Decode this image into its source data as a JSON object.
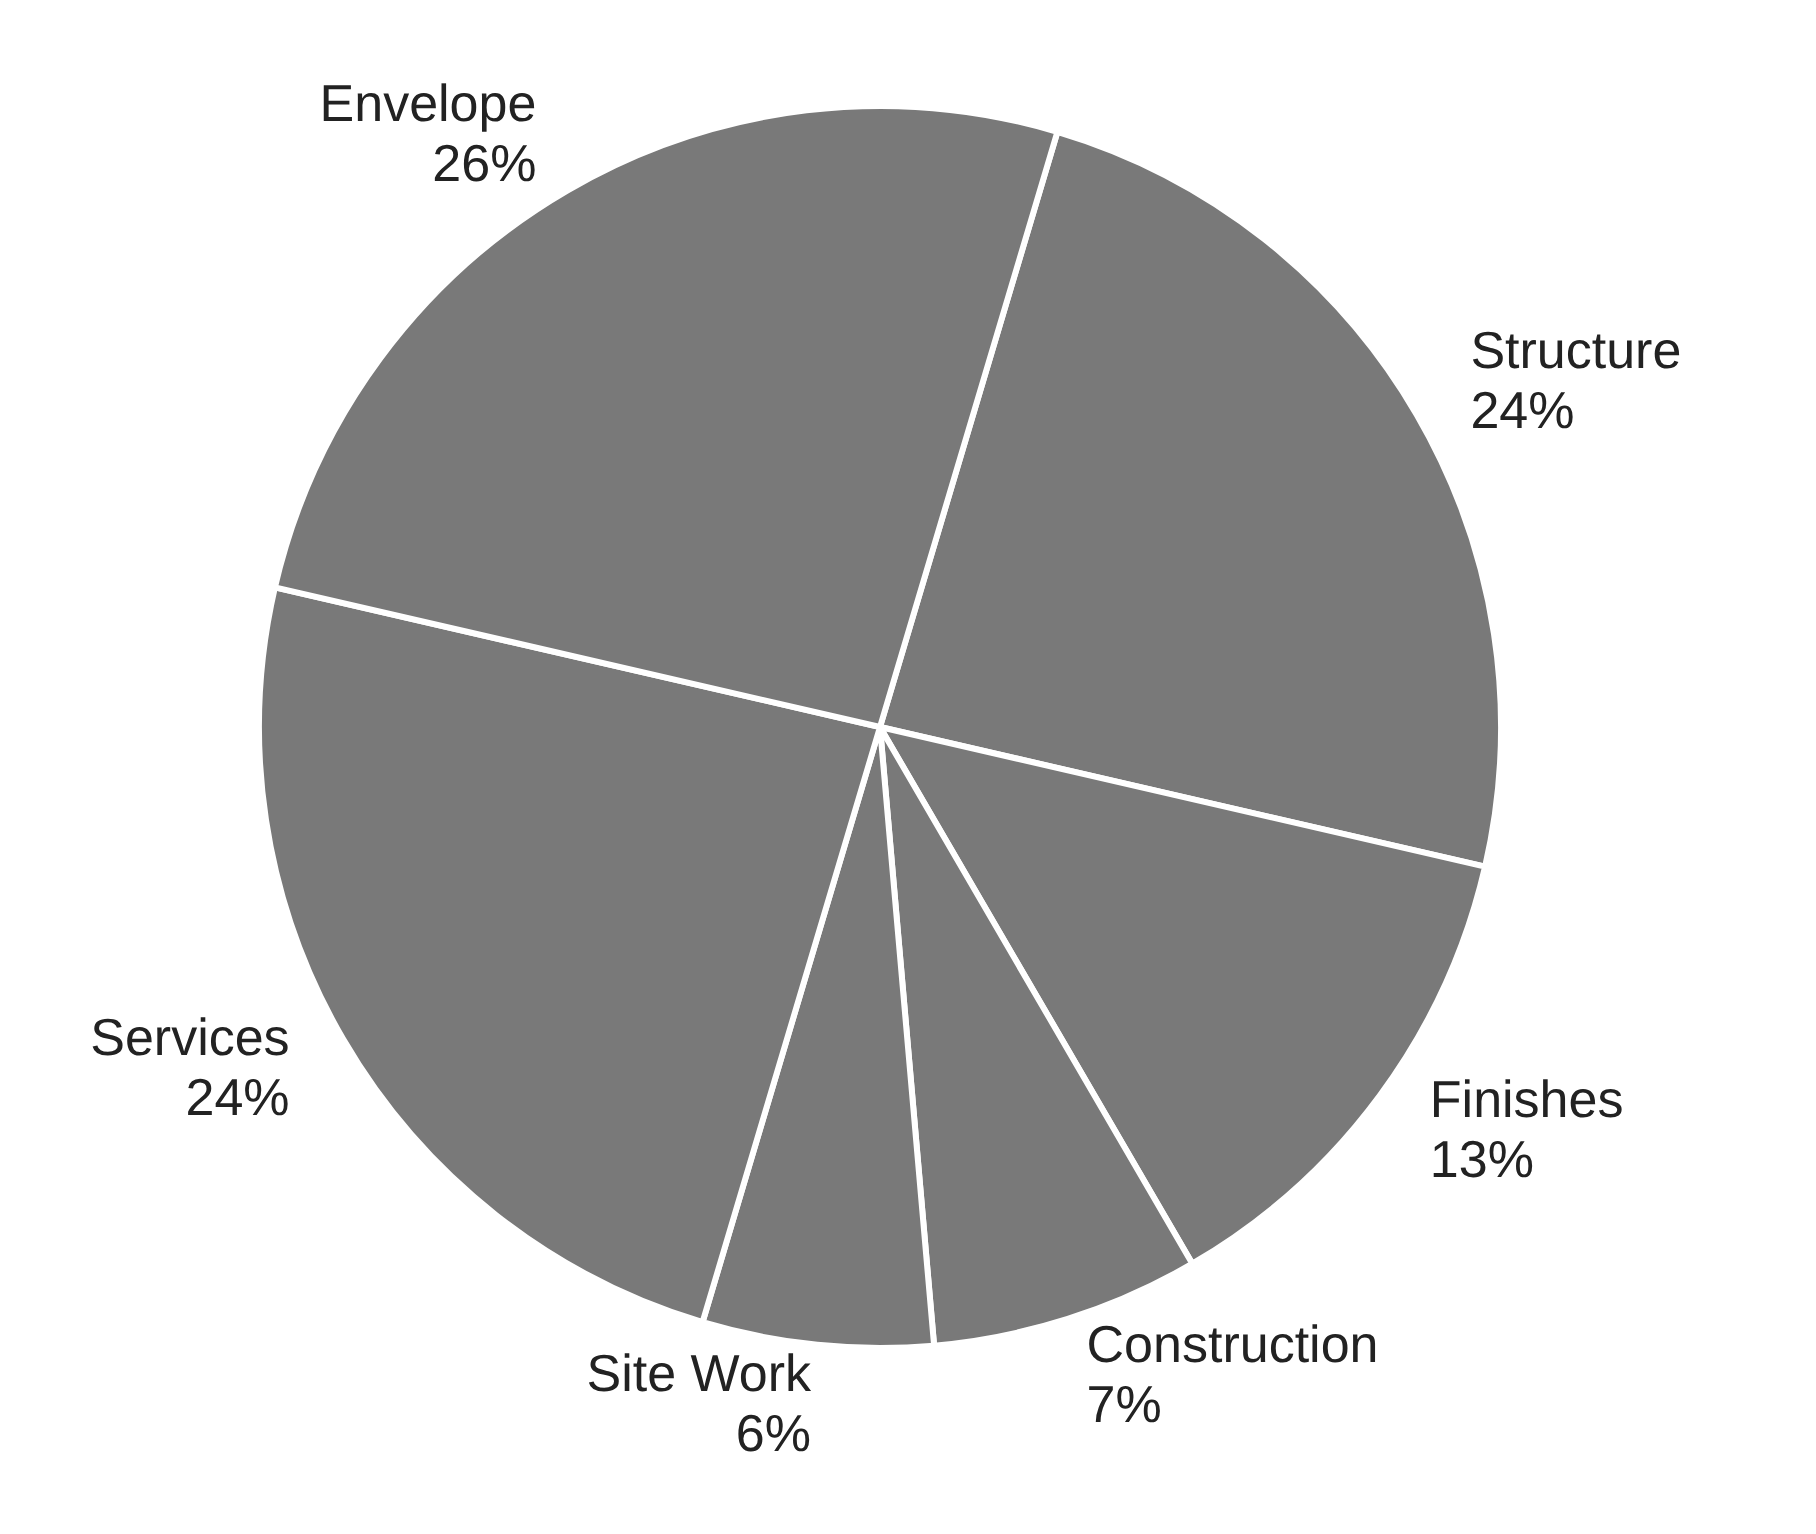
{
  "chart_data": {
    "type": "pie",
    "categories": [
      "Structure",
      "Finishes",
      "Construction",
      "Site Work",
      "Services",
      "Envelope"
    ],
    "values": [
      24,
      13,
      7,
      6,
      24,
      26
    ],
    "colors": [
      "#797979",
      "#797979",
      "#797979",
      "#797979",
      "#797979",
      "#797979"
    ],
    "value_labels": [
      "24%",
      "13%",
      "7%",
      "6%",
      "24%",
      "26%"
    ],
    "legend": false
  }
}
